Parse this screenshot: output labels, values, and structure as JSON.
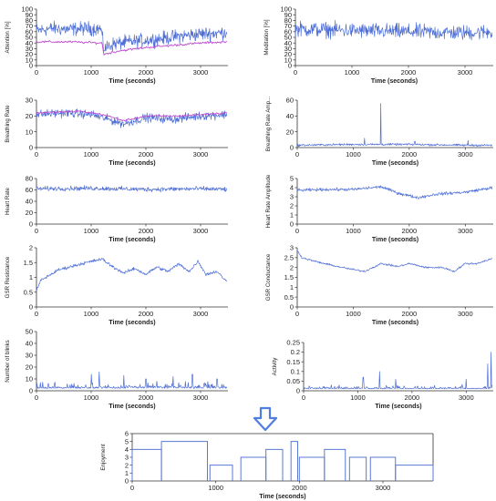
{
  "flow_arrow_icon": "down-arrow-icon",
  "chart_data": [
    {
      "id": "attention",
      "type": "line",
      "ylabel": "Attention [%]",
      "xlabel": "Time (seconds)",
      "xlim": [
        0,
        3500
      ],
      "ylim": [
        0,
        100
      ],
      "xticks": [
        0,
        1000,
        2000,
        3000
      ],
      "yticks": [
        0,
        10,
        20,
        30,
        40,
        50,
        60,
        70,
        80,
        90,
        100
      ],
      "series": [
        {
          "color": "#4f6fd6",
          "style": "noisy",
          "values": [
            [
              0,
              62
            ],
            [
              300,
              66
            ],
            [
              600,
              64
            ],
            [
              900,
              66
            ],
            [
              1180,
              65
            ],
            [
              1230,
              30
            ],
            [
              1400,
              38
            ],
            [
              1700,
              42
            ],
            [
              2000,
              45
            ],
            [
              2300,
              48
            ],
            [
              2600,
              52
            ],
            [
              3000,
              56
            ],
            [
              3400,
              58
            ],
            [
              3480,
              60
            ]
          ],
          "noise": 18
        },
        {
          "color": "#c04ad0",
          "style": "smooth",
          "values": [
            [
              0,
              42
            ],
            [
              600,
              42
            ],
            [
              1200,
              40
            ],
            [
              1230,
              20
            ],
            [
              1500,
              26
            ],
            [
              2000,
              32
            ],
            [
              2500,
              36
            ],
            [
              3000,
              40
            ],
            [
              3480,
              42
            ]
          ]
        }
      ]
    },
    {
      "id": "meditation",
      "type": "line",
      "ylabel": "Meditation [%]",
      "xlabel": "Time (seconds)",
      "xlim": [
        0,
        3500
      ],
      "ylim": [
        0,
        100
      ],
      "xticks": [
        0,
        1000,
        2000,
        3000
      ],
      "yticks": [
        0,
        10,
        20,
        30,
        40,
        50,
        60,
        70,
        80,
        90,
        100
      ],
      "series": [
        {
          "color": "#4f6fd6",
          "style": "noisy",
          "values": [
            [
              0,
              65
            ],
            [
              1000,
              62
            ],
            [
              2000,
              60
            ],
            [
              3000,
              58
            ],
            [
              3480,
              60
            ]
          ],
          "noise": 20
        }
      ]
    },
    {
      "id": "breathing-rate",
      "type": "line",
      "ylabel": "Breathing Rate",
      "xlabel": "Time (seconds)",
      "xlim": [
        0,
        3500
      ],
      "ylim": [
        0,
        30
      ],
      "xticks": [
        0,
        1000,
        2000,
        3000
      ],
      "yticks": [
        0,
        10,
        20,
        30
      ],
      "series": [
        {
          "color": "#4f6fd6",
          "style": "noisy",
          "values": [
            [
              0,
              21
            ],
            [
              500,
              22
            ],
            [
              1000,
              21
            ],
            [
              1300,
              18
            ],
            [
              1600,
              15
            ],
            [
              2000,
              19
            ],
            [
              2500,
              18
            ],
            [
              3000,
              20
            ],
            [
              3480,
              21
            ]
          ],
          "noise": 4
        },
        {
          "color": "#c04ad0",
          "style": "smooth",
          "values": [
            [
              0,
              22
            ],
            [
              800,
              23
            ],
            [
              1200,
              21
            ],
            [
              1600,
              17
            ],
            [
              2000,
              20
            ],
            [
              2600,
              20
            ],
            [
              3480,
              22
            ]
          ]
        }
      ]
    },
    {
      "id": "breathing-rate-amplitude",
      "type": "line",
      "ylabel": "Breathing Rate Amp...",
      "xlabel": "Time (seconds)",
      "xlim": [
        0,
        3500
      ],
      "ylim": [
        0,
        60
      ],
      "xticks": [
        0,
        1000,
        2000,
        3000
      ],
      "yticks": [
        0,
        20,
        40,
        60
      ],
      "series": [
        {
          "color": "#4f6fd6",
          "style": "noisy",
          "values": [
            [
              0,
              3
            ],
            [
              1000,
              4
            ],
            [
              2000,
              4
            ],
            [
              3000,
              3
            ],
            [
              3480,
              3
            ]
          ],
          "noise": 2,
          "spikes": [
            [
              1490,
              56
            ],
            [
              1200,
              12
            ],
            [
              2100,
              8
            ],
            [
              3050,
              9
            ]
          ]
        }
      ]
    },
    {
      "id": "heart-rate",
      "type": "line",
      "ylabel": "Heart Rate",
      "xlabel": "Time (seconds)",
      "xlim": [
        0,
        3500
      ],
      "ylim": [
        0,
        80
      ],
      "xticks": [
        0,
        1000,
        2000,
        3000
      ],
      "yticks": [
        0,
        20,
        40,
        60,
        80
      ],
      "series": [
        {
          "color": "#4f6fd6",
          "style": "noisy",
          "values": [
            [
              0,
              62
            ],
            [
              1000,
              63
            ],
            [
              2000,
              61
            ],
            [
              3000,
              62
            ],
            [
              3480,
              61
            ]
          ],
          "noise": 6
        }
      ]
    },
    {
      "id": "heart-rate-amplitude",
      "type": "line",
      "ylabel": "Heart Rate Amplitude",
      "xlabel": "Time (seconds)",
      "xlim": [
        0,
        3500
      ],
      "ylim": [
        0,
        5
      ],
      "xticks": [
        0,
        1000,
        2000,
        3000
      ],
      "yticks": [
        0,
        1,
        2,
        3,
        4,
        5
      ],
      "series": [
        {
          "color": "#4f6fd6",
          "style": "noisy",
          "values": [
            [
              0,
              3.7
            ],
            [
              500,
              3.8
            ],
            [
              1000,
              3.8
            ],
            [
              1500,
              4.1
            ],
            [
              1800,
              3.4
            ],
            [
              2150,
              2.9
            ],
            [
              2500,
              3.3
            ],
            [
              3000,
              3.5
            ],
            [
              3480,
              4.0
            ]
          ],
          "noise": 0.25
        }
      ]
    },
    {
      "id": "gsr-resistance",
      "type": "line",
      "ylabel": "GSR Resistance",
      "xlabel": "Time (seconds)",
      "xlim": [
        0,
        3500
      ],
      "ylim": [
        0,
        2
      ],
      "xticks": [
        0,
        1000,
        2000,
        3000
      ],
      "yticks": [
        0,
        0.5,
        1,
        1.5,
        2
      ],
      "series": [
        {
          "color": "#4f6fd6",
          "style": "noisy",
          "values": [
            [
              0,
              0.55
            ],
            [
              80,
              0.9
            ],
            [
              400,
              1.25
            ],
            [
              800,
              1.45
            ],
            [
              1200,
              1.62
            ],
            [
              1400,
              1.35
            ],
            [
              1600,
              1.15
            ],
            [
              1800,
              1.3
            ],
            [
              2000,
              1.1
            ],
            [
              2200,
              1.35
            ],
            [
              2400,
              1.2
            ],
            [
              2600,
              1.45
            ],
            [
              2800,
              1.2
            ],
            [
              2950,
              1.55
            ],
            [
              3100,
              1.1
            ],
            [
              3300,
              1.2
            ],
            [
              3480,
              0.85
            ]
          ],
          "noise": 0.08
        }
      ]
    },
    {
      "id": "gsr-conductance",
      "type": "line",
      "ylabel": "GSR Conductance",
      "xlabel": "Time (seconds)",
      "xlim": [
        0,
        3500
      ],
      "ylim": [
        0,
        3
      ],
      "xticks": [
        0,
        1000,
        2000,
        3000
      ],
      "yticks": [
        0,
        0.5,
        1,
        1.5,
        2,
        2.5,
        3
      ],
      "series": [
        {
          "color": "#4f6fd6",
          "style": "noisy",
          "values": [
            [
              0,
              2.9
            ],
            [
              80,
              2.5
            ],
            [
              400,
              2.25
            ],
            [
              800,
              2.0
            ],
            [
              1200,
              1.8
            ],
            [
              1500,
              2.2
            ],
            [
              1800,
              2.05
            ],
            [
              2000,
              2.2
            ],
            [
              2300,
              2.0
            ],
            [
              2600,
              2.0
            ],
            [
              2800,
              1.8
            ],
            [
              3000,
              2.2
            ],
            [
              3200,
              2.2
            ],
            [
              3480,
              2.45
            ]
          ],
          "noise": 0.07
        }
      ]
    },
    {
      "id": "number-of-blinks",
      "type": "line",
      "ylabel": "Number of blinks",
      "xlabel": "Time (seconds)",
      "xlim": [
        0,
        3500
      ],
      "ylim": [
        0,
        50
      ],
      "xticks": [
        0,
        1000,
        2000,
        3000
      ],
      "yticks": [
        0,
        10,
        20,
        30,
        40,
        50
      ],
      "series": [
        {
          "color": "#4f6fd6",
          "style": "spiky",
          "values": [
            [
              0,
              2
            ],
            [
              3480,
              2
            ]
          ],
          "noise": 6,
          "spikes": [
            [
              1000,
              14
            ],
            [
              1150,
              16
            ],
            [
              1600,
              13
            ],
            [
              2000,
              10
            ],
            [
              2500,
              12
            ],
            [
              2850,
              14
            ],
            [
              3300,
              10
            ]
          ]
        }
      ]
    },
    {
      "id": "activity",
      "type": "line",
      "ylabel": "Activity",
      "xlabel": "Time (seconds)",
      "xlim": [
        0,
        3500
      ],
      "ylim": [
        0,
        0.25
      ],
      "xticks": [
        0,
        1000,
        2000,
        3000
      ],
      "yticks": [
        0,
        0.05,
        0.1,
        0.15,
        0.2,
        0.25
      ],
      "series": [
        {
          "color": "#4f6fd6",
          "style": "spiky",
          "values": [
            [
              0,
              0.01
            ],
            [
              3480,
              0.01
            ]
          ],
          "noise": 0.02,
          "spikes": [
            [
              1100,
              0.07
            ],
            [
              1400,
              0.1
            ],
            [
              1700,
              0.06
            ],
            [
              3000,
              0.06
            ],
            [
              3400,
              0.14
            ],
            [
              3460,
              0.2
            ]
          ]
        }
      ]
    },
    {
      "id": "enjoyment",
      "type": "step",
      "ylabel": "Enjoyment",
      "xlabel": "Time (seconds)",
      "xlim": [
        0,
        3600
      ],
      "ylim": [
        0,
        6
      ],
      "xticks": [
        0,
        1000,
        2000,
        3000
      ],
      "yticks": [
        0,
        1,
        2,
        3,
        4,
        5,
        6
      ],
      "series": [
        {
          "color": "#5a78d6",
          "segments": [
            [
              0,
              350,
              4
            ],
            [
              350,
              900,
              5
            ],
            [
              930,
              1200,
              2
            ],
            [
              1300,
              1600,
              3
            ],
            [
              1600,
              1800,
              4
            ],
            [
              1900,
              1980,
              5
            ],
            [
              2000,
              2300,
              3
            ],
            [
              2300,
              2550,
              4
            ],
            [
              2600,
              2800,
              3
            ],
            [
              2850,
              3150,
              3
            ],
            [
              3150,
              3600,
              2
            ]
          ]
        }
      ]
    }
  ]
}
